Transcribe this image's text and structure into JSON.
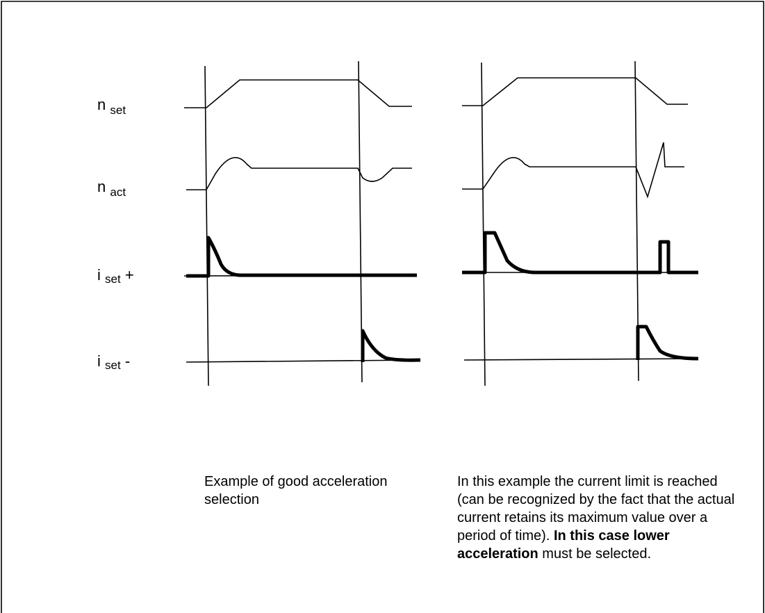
{
  "signals": [
    {
      "name": "n",
      "sub": "set"
    },
    {
      "name": "n",
      "sub": "act"
    },
    {
      "name": "i",
      "sub": "set",
      "suffix": "+"
    },
    {
      "name": "i",
      "sub": "set",
      "suffix": "-"
    }
  ],
  "captions": {
    "left": "Example of good acceleration selection",
    "right": {
      "text": "In this example the current limit is reached (can be recognized by the fact that the actual current retains its maximum value over a period of time). ",
      "bold": "In this case lower acceleration",
      "end": " must be selected."
    }
  }
}
